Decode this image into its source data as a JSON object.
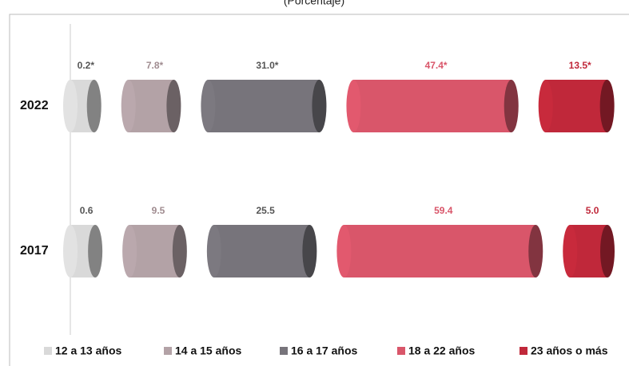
{
  "chart_data": {
    "type": "cylinder-bar",
    "title": "(Porcentaje)",
    "categories": [
      "2022",
      "2017"
    ],
    "series": [
      {
        "name": "12 a 13 años",
        "color": "#d9d9d9",
        "label_color": "#555555",
        "values": [
          0.2,
          0.6
        ],
        "value_labels": [
          "0.2*",
          "0.6"
        ]
      },
      {
        "name": "14 a 15 años",
        "color": "#b3a2a6",
        "label_color": "#a08c90",
        "values": [
          7.8,
          9.5
        ],
        "value_labels": [
          "7.8*",
          "9.5"
        ]
      },
      {
        "name": "16 a 17 años",
        "color": "#77747b",
        "label_color": "#555555",
        "values": [
          31.0,
          25.5
        ],
        "value_labels": [
          "31.0*",
          "25.5"
        ]
      },
      {
        "name": "18 a 22 años",
        "color": "#d9566a",
        "label_color": "#d9566a",
        "values": [
          47.4,
          59.4
        ],
        "value_labels": [
          "47.4*",
          "59.4"
        ]
      },
      {
        "name": "23 años o más",
        "color": "#c0283a",
        "label_color": "#c0283a",
        "values": [
          13.5,
          5.0
        ],
        "value_labels": [
          "13.5*",
          "5.0"
        ]
      }
    ]
  }
}
